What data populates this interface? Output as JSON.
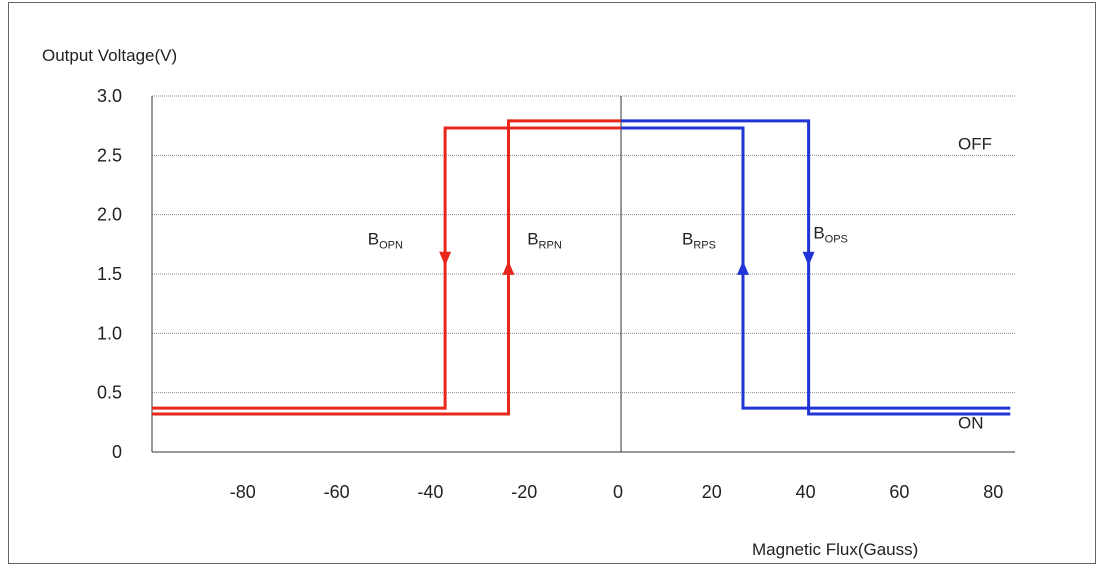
{
  "chart_data": {
    "type": "line",
    "xlabel": "Magnetic Flux(Gauss)",
    "ylabel": "Output Voltage(V)",
    "xlim": [
      -100,
      84
    ],
    "ylim": [
      0,
      3.0
    ],
    "x_ticks": [
      -80,
      -60,
      -40,
      -20,
      0,
      20,
      40,
      60,
      80
    ],
    "y_ticks": [
      {
        "value": 0,
        "label": "0"
      },
      {
        "value": 0.5,
        "label": "0.5"
      },
      {
        "value": 1.0,
        "label": "1.0"
      },
      {
        "value": 1.5,
        "label": "1.5"
      },
      {
        "value": 2.0,
        "label": "2.0"
      },
      {
        "value": 2.5,
        "label": "2.5"
      },
      {
        "value": 3.0,
        "label": "3.0"
      }
    ],
    "grid": "horizontal",
    "series": [
      {
        "color": "#e8261c",
        "points": [
          [
            -100,
            0.37
          ],
          [
            -37.5,
            0.37
          ],
          [
            -37.5,
            2.73
          ],
          [
            0,
            2.73
          ]
        ]
      },
      {
        "color": "#e8261c",
        "points": [
          [
            -100,
            0.32
          ],
          [
            -24,
            0.32
          ],
          [
            -24,
            2.79
          ],
          [
            0,
            2.79
          ]
        ]
      },
      {
        "color": "#1f35d6",
        "points": [
          [
            0,
            2.73
          ],
          [
            26,
            2.73
          ],
          [
            26,
            0.37
          ],
          [
            83,
            0.37
          ]
        ]
      },
      {
        "color": "#1f35d6",
        "points": [
          [
            0,
            2.79
          ],
          [
            40,
            2.79
          ],
          [
            40,
            0.32
          ],
          [
            83,
            0.32
          ]
        ]
      }
    ],
    "arrows": [
      {
        "x": -37.5,
        "y": 1.62,
        "direction": "down",
        "color": "#e8261c"
      },
      {
        "x": -24,
        "y": 1.56,
        "direction": "up",
        "color": "#e8261c"
      },
      {
        "x": 26,
        "y": 1.56,
        "direction": "up",
        "color": "#1f35d6"
      },
      {
        "x": 40,
        "y": 1.62,
        "direction": "down",
        "color": "#1f35d6"
      }
    ],
    "annotations": [
      {
        "main": "B",
        "sub": "OPN",
        "x": -54,
        "y": 1.75
      },
      {
        "main": "B",
        "sub": "RPN",
        "x": -20,
        "y": 1.75
      },
      {
        "main": "B",
        "sub": "RPS",
        "x": 13,
        "y": 1.75
      },
      {
        "main": "B",
        "sub": "OPS",
        "x": 41,
        "y": 1.8
      }
    ],
    "state_labels": [
      {
        "text": "OFF",
        "y": 2.6
      },
      {
        "text": "ON",
        "y": 0.25
      }
    ]
  }
}
